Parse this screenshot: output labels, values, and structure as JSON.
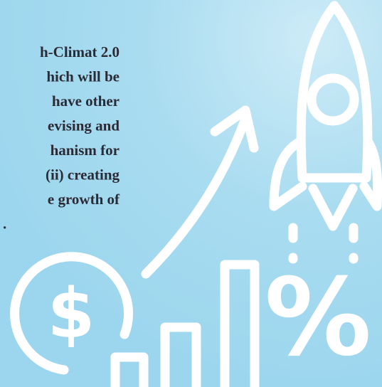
{
  "text_lines": [
    "h-Climat 2.0",
    "hich will be",
    "have other",
    "evising and",
    "hanism for",
    "(ii) creating",
    "e growth of",
    "."
  ],
  "icons": {
    "dollar": "$",
    "percent": "%"
  }
}
